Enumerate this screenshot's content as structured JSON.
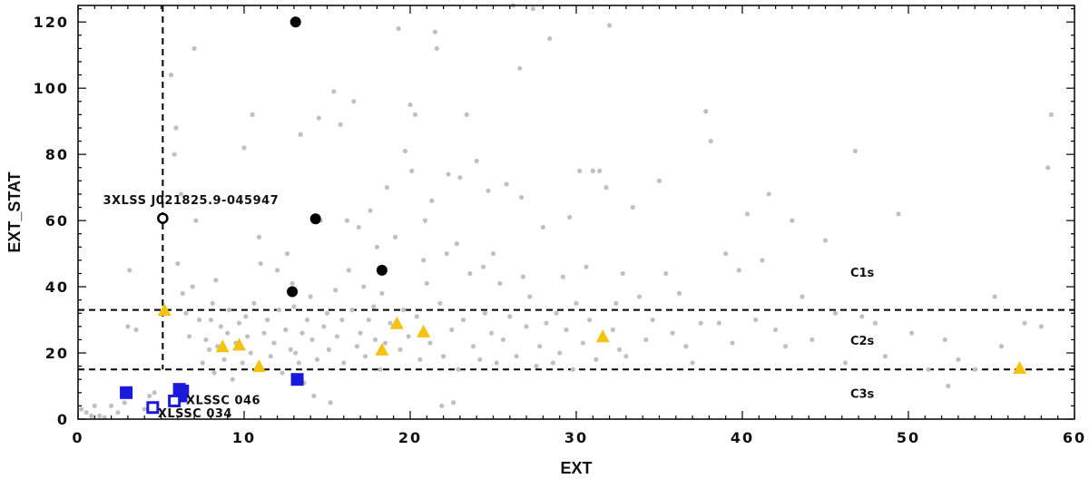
{
  "chart_data": {
    "type": "scatter",
    "xlabel": "EXT",
    "ylabel": "EXT_STAT",
    "xlim": [
      0,
      60
    ],
    "ylim": [
      0,
      125
    ],
    "xticks": [
      0,
      10,
      20,
      30,
      40,
      50,
      60
    ],
    "yticks": [
      0,
      20,
      40,
      60,
      80,
      100,
      120
    ],
    "xtick_labels": [
      "0",
      "10",
      "20",
      "30",
      "40",
      "50",
      "60"
    ],
    "ytick_labels": [
      "0",
      "20",
      "40",
      "60",
      "80",
      "100",
      "120"
    ],
    "grid": false,
    "thresholds": {
      "horizontal": [
        33,
        15
      ],
      "vertical_x": 5.1,
      "vertical_y_max": 125
    },
    "class_labels": [
      {
        "text": "C1s",
        "x": 46.5,
        "y": 43
      },
      {
        "text": "C2s",
        "x": 46.5,
        "y": 22.5
      },
      {
        "text": "C3s",
        "x": 46.5,
        "y": 6.5
      }
    ],
    "annotations": [
      {
        "text": "3XLSS J021825.9-045947",
        "x": 1.5,
        "y": 65
      },
      {
        "text": "XLSSC 046",
        "x": 6.5,
        "y": 4.5
      },
      {
        "text": "XLSSC 034",
        "x": 4.8,
        "y": 0.6
      }
    ],
    "colors": {
      "background_points": "#c0c0c0",
      "c1_points": "#000000",
      "c2_points": "#f5c211",
      "c3_points": "#1a1adb",
      "threshold_lines": "#000000"
    },
    "series": [
      {
        "name": "",
        "marker": "dot-grey",
        "points": [
          [
            0.2,
            3
          ],
          [
            0.5,
            2
          ],
          [
            0.8,
            1
          ],
          [
            1.0,
            4
          ],
          [
            1.3,
            1
          ],
          [
            1.6,
            0.5
          ],
          [
            2.0,
            4
          ],
          [
            2.4,
            2
          ],
          [
            2.8,
            5
          ],
          [
            3.0,
            28
          ],
          [
            3.1,
            45
          ],
          [
            3.5,
            27
          ],
          [
            4.0,
            3
          ],
          [
            4.3,
            7
          ],
          [
            4.6,
            8
          ],
          [
            5.6,
            104
          ],
          [
            5.8,
            80
          ],
          [
            5.9,
            88
          ],
          [
            6.0,
            47
          ],
          [
            6.2,
            68
          ],
          [
            6.3,
            38
          ],
          [
            6.5,
            32
          ],
          [
            6.7,
            25
          ],
          [
            6.9,
            40
          ],
          [
            7.0,
            112
          ],
          [
            7.1,
            60
          ],
          [
            7.3,
            30
          ],
          [
            7.5,
            17
          ],
          [
            7.7,
            24
          ],
          [
            7.9,
            21
          ],
          [
            8.0,
            30
          ],
          [
            8.1,
            35
          ],
          [
            8.2,
            14
          ],
          [
            8.3,
            42
          ],
          [
            8.4,
            22
          ],
          [
            8.6,
            28
          ],
          [
            8.8,
            18
          ],
          [
            9.0,
            26
          ],
          [
            9.1,
            33
          ],
          [
            9.3,
            12
          ],
          [
            9.5,
            23
          ],
          [
            9.7,
            29
          ],
          [
            9.9,
            17
          ],
          [
            10.0,
            82
          ],
          [
            10.1,
            31
          ],
          [
            10.2,
            25
          ],
          [
            10.4,
            20
          ],
          [
            10.5,
            92
          ],
          [
            10.6,
            35
          ],
          [
            10.8,
            15
          ],
          [
            10.9,
            55
          ],
          [
            11.0,
            47
          ],
          [
            11.2,
            26
          ],
          [
            11.4,
            30
          ],
          [
            11.6,
            19
          ],
          [
            11.8,
            23
          ],
          [
            12.0,
            45
          ],
          [
            12.1,
            33
          ],
          [
            12.3,
            14
          ],
          [
            12.5,
            27
          ],
          [
            12.6,
            50
          ],
          [
            12.8,
            21
          ],
          [
            12.9,
            41
          ],
          [
            13.0,
            34
          ],
          [
            13.1,
            20
          ],
          [
            13.3,
            17
          ],
          [
            13.4,
            86
          ],
          [
            13.5,
            26
          ],
          [
            13.6,
            11
          ],
          [
            13.8,
            30
          ],
          [
            14.0,
            37
          ],
          [
            14.1,
            24
          ],
          [
            14.2,
            7
          ],
          [
            14.4,
            18
          ],
          [
            14.5,
            91
          ],
          [
            14.6,
            60
          ],
          [
            14.8,
            28
          ],
          [
            15.0,
            32
          ],
          [
            15.1,
            21
          ],
          [
            15.2,
            5
          ],
          [
            15.4,
            99
          ],
          [
            15.5,
            39
          ],
          [
            15.6,
            25
          ],
          [
            15.8,
            89
          ],
          [
            15.9,
            30
          ],
          [
            16.0,
            17
          ],
          [
            16.2,
            60
          ],
          [
            16.3,
            45
          ],
          [
            16.5,
            33
          ],
          [
            16.6,
            96
          ],
          [
            16.8,
            22
          ],
          [
            16.9,
            58
          ],
          [
            17.0,
            26
          ],
          [
            17.2,
            40
          ],
          [
            17.3,
            19
          ],
          [
            17.5,
            30
          ],
          [
            17.6,
            63
          ],
          [
            17.8,
            34
          ],
          [
            17.9,
            24
          ],
          [
            18.0,
            52
          ],
          [
            18.2,
            15
          ],
          [
            18.3,
            38
          ],
          [
            18.5,
            23
          ],
          [
            18.6,
            70
          ],
          [
            18.8,
            29
          ],
          [
            19.0,
            28
          ],
          [
            19.1,
            55
          ],
          [
            19.3,
            118
          ],
          [
            19.4,
            21
          ],
          [
            19.6,
            33
          ],
          [
            19.7,
            81
          ],
          [
            19.9,
            25
          ],
          [
            20.0,
            95
          ],
          [
            20.1,
            75
          ],
          [
            20.3,
            92
          ],
          [
            20.4,
            31
          ],
          [
            20.6,
            18
          ],
          [
            20.8,
            48
          ],
          [
            20.9,
            60
          ],
          [
            21.0,
            41
          ],
          [
            21.2,
            23
          ],
          [
            21.3,
            66
          ],
          [
            21.5,
            117
          ],
          [
            21.6,
            112
          ],
          [
            21.8,
            35
          ],
          [
            21.9,
            4
          ],
          [
            22.0,
            19
          ],
          [
            22.2,
            50
          ],
          [
            22.3,
            74
          ],
          [
            22.5,
            27
          ],
          [
            22.6,
            5
          ],
          [
            22.8,
            53
          ],
          [
            22.9,
            15
          ],
          [
            23.0,
            73
          ],
          [
            23.2,
            30
          ],
          [
            23.4,
            92
          ],
          [
            23.6,
            44
          ],
          [
            23.8,
            22
          ],
          [
            24.0,
            78
          ],
          [
            24.2,
            18
          ],
          [
            24.4,
            46
          ],
          [
            24.5,
            32
          ],
          [
            24.7,
            69
          ],
          [
            24.9,
            26
          ],
          [
            25.0,
            50
          ],
          [
            25.2,
            17
          ],
          [
            25.4,
            41
          ],
          [
            25.6,
            24
          ],
          [
            25.8,
            71
          ],
          [
            26.0,
            31
          ],
          [
            26.2,
            125
          ],
          [
            26.4,
            19
          ],
          [
            26.6,
            106
          ],
          [
            26.7,
            67
          ],
          [
            26.8,
            43
          ],
          [
            27.0,
            28
          ],
          [
            27.2,
            37
          ],
          [
            27.4,
            124
          ],
          [
            27.6,
            16
          ],
          [
            27.8,
            22
          ],
          [
            28.0,
            58
          ],
          [
            28.2,
            29
          ],
          [
            28.4,
            115
          ],
          [
            28.6,
            17
          ],
          [
            28.8,
            32
          ],
          [
            29.0,
            20
          ],
          [
            29.2,
            43
          ],
          [
            29.4,
            27
          ],
          [
            29.6,
            61
          ],
          [
            29.8,
            15
          ],
          [
            30.0,
            35
          ],
          [
            30.2,
            75
          ],
          [
            30.4,
            23
          ],
          [
            30.6,
            46
          ],
          [
            30.8,
            30
          ],
          [
            31.0,
            75
          ],
          [
            31.2,
            18
          ],
          [
            31.4,
            75
          ],
          [
            31.6,
            25
          ],
          [
            31.8,
            70
          ],
          [
            32.0,
            119
          ],
          [
            32.2,
            27
          ],
          [
            32.4,
            35
          ],
          [
            32.6,
            21
          ],
          [
            32.8,
            44
          ],
          [
            33.0,
            19
          ],
          [
            33.4,
            64
          ],
          [
            33.8,
            37
          ],
          [
            34.2,
            24
          ],
          [
            34.6,
            30
          ],
          [
            35.0,
            72
          ],
          [
            35.4,
            44
          ],
          [
            35.8,
            26
          ],
          [
            36.2,
            38
          ],
          [
            36.6,
            22
          ],
          [
            37.0,
            17
          ],
          [
            37.5,
            29
          ],
          [
            37.8,
            93
          ],
          [
            38.1,
            84
          ],
          [
            38.6,
            29
          ],
          [
            39.0,
            50
          ],
          [
            39.4,
            23
          ],
          [
            39.8,
            45
          ],
          [
            40.3,
            62
          ],
          [
            40.8,
            30
          ],
          [
            41.2,
            48
          ],
          [
            41.6,
            68
          ],
          [
            42.0,
            27
          ],
          [
            42.6,
            22
          ],
          [
            43.0,
            60
          ],
          [
            43.6,
            37
          ],
          [
            44.2,
            24
          ],
          [
            45.0,
            54
          ],
          [
            45.6,
            32
          ],
          [
            46.2,
            17
          ],
          [
            46.8,
            81
          ],
          [
            47.2,
            31
          ],
          [
            48.0,
            29
          ],
          [
            48.6,
            19
          ],
          [
            49.4,
            62
          ],
          [
            50.2,
            26
          ],
          [
            51.2,
            15
          ],
          [
            52.2,
            24
          ],
          [
            52.4,
            10
          ],
          [
            53.0,
            18
          ],
          [
            54.0,
            15
          ],
          [
            55.2,
            37
          ],
          [
            55.6,
            22
          ],
          [
            57.0,
            29
          ],
          [
            58.0,
            28
          ],
          [
            58.4,
            76
          ],
          [
            58.6,
            92
          ]
        ]
      },
      {
        "name": "",
        "marker": "circle-black",
        "points": [
          [
            13.1,
            120
          ],
          [
            14.3,
            60.5
          ],
          [
            18.3,
            45
          ],
          [
            12.9,
            38.5
          ]
        ]
      },
      {
        "name": "",
        "marker": "circle-open",
        "points": [
          [
            5.1,
            60.7
          ]
        ]
      },
      {
        "name": "",
        "marker": "triangle-yellow",
        "points": [
          [
            5.2,
            33
          ],
          [
            8.7,
            22
          ],
          [
            9.7,
            22.5
          ],
          [
            10.9,
            16
          ],
          [
            18.3,
            21
          ],
          [
            19.2,
            29
          ],
          [
            20.8,
            26.5
          ],
          [
            31.6,
            25
          ],
          [
            56.7,
            15.5
          ]
        ]
      },
      {
        "name": "",
        "marker": "square-blue",
        "points": [
          [
            2.9,
            8
          ],
          [
            6.1,
            9
          ],
          [
            6.2,
            7
          ],
          [
            6.3,
            8.5
          ],
          [
            13.2,
            12
          ]
        ]
      },
      {
        "name": "",
        "marker": "square-open-blue",
        "points": [
          [
            4.5,
            3.5
          ],
          [
            5.8,
            5.5
          ]
        ]
      }
    ]
  }
}
